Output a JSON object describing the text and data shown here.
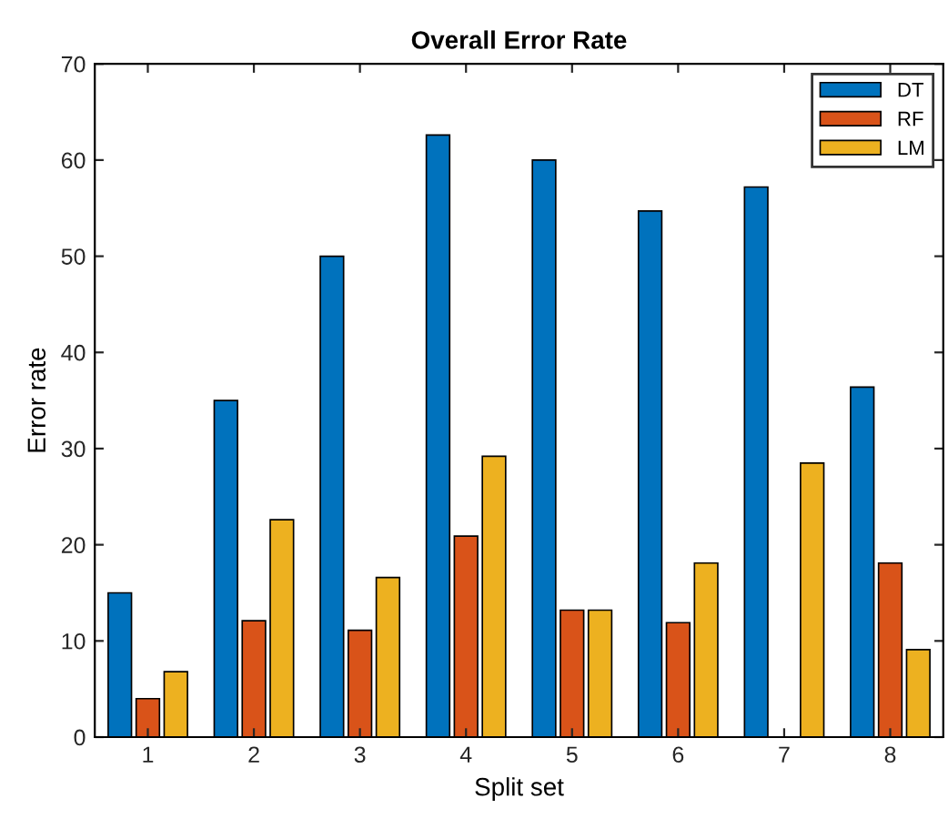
{
  "chart_data": {
    "type": "bar",
    "title": "Overall Error Rate",
    "xlabel": "Split set",
    "ylabel": "Error rate",
    "categories": [
      "1",
      "2",
      "3",
      "4",
      "5",
      "6",
      "7",
      "8"
    ],
    "series": [
      {
        "name": "DT",
        "color": "#0072bd",
        "values": [
          15,
          35,
          50,
          62.6,
          60,
          54.7,
          57.2,
          36.4
        ]
      },
      {
        "name": "RF",
        "color": "#d95319",
        "values": [
          4,
          12.1,
          11.1,
          20.9,
          13.2,
          11.9,
          null,
          18.1
        ]
      },
      {
        "name": "LM",
        "color": "#edb120",
        "values": [
          6.8,
          22.6,
          16.6,
          29.2,
          13.2,
          18.1,
          28.5,
          9.1
        ]
      }
    ],
    "ylim": [
      0,
      70
    ],
    "yticks": [
      0,
      10,
      20,
      30,
      40,
      50,
      60,
      70
    ],
    "grid": false,
    "legend": "top right"
  }
}
